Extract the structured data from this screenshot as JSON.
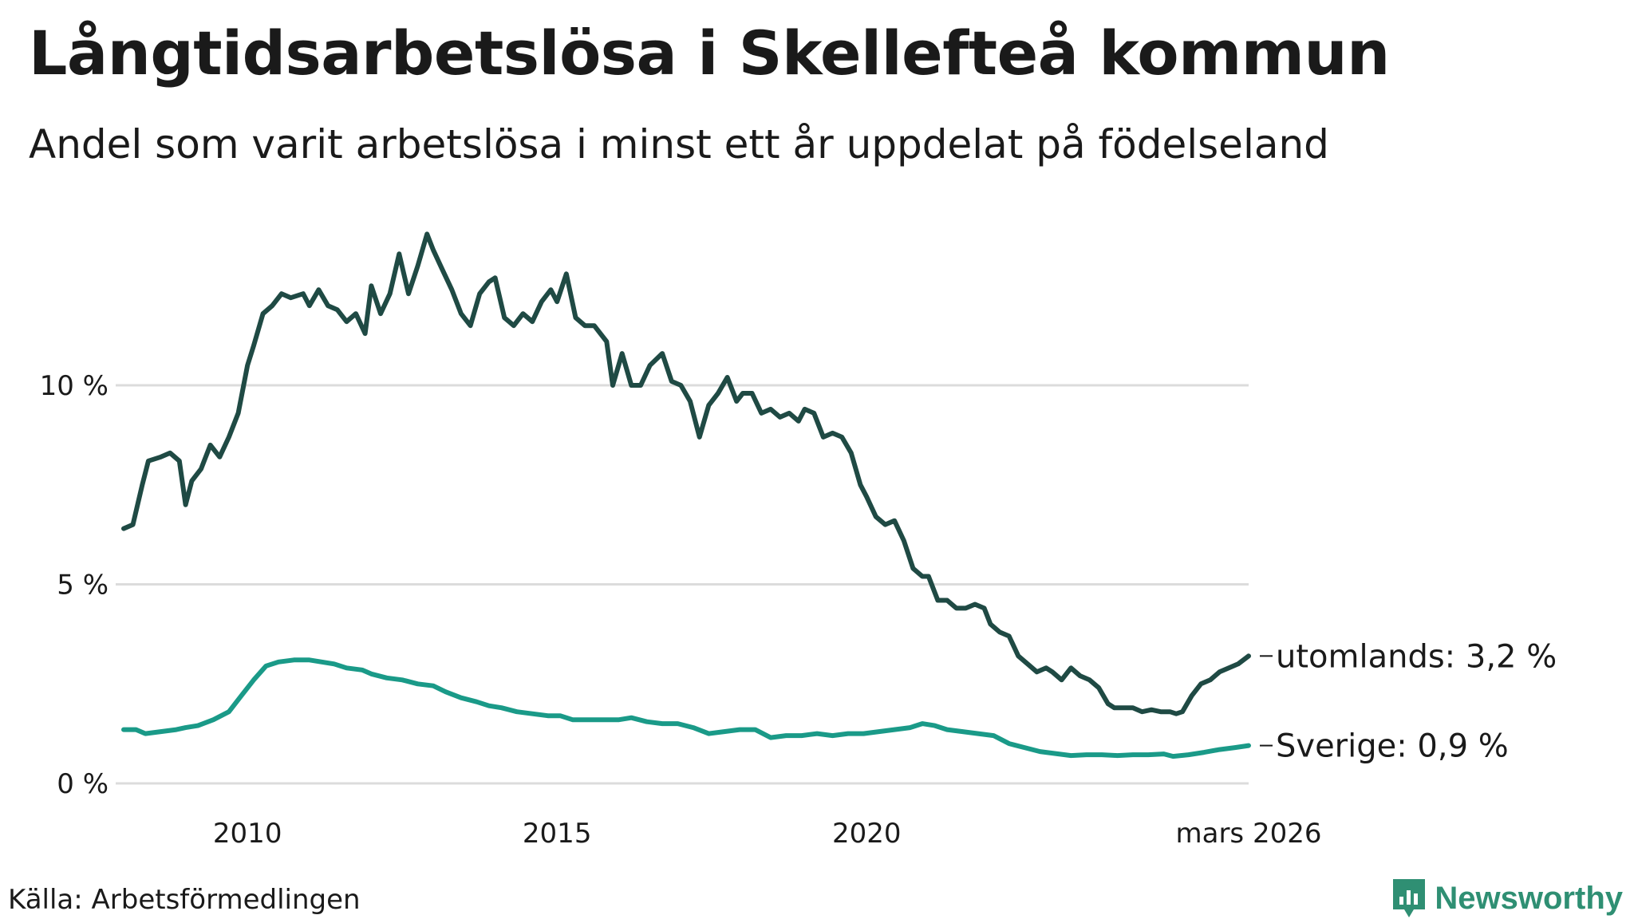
{
  "header": {
    "title": "Långtidsarbetslösa i Skellefteå kommun",
    "subtitle": "Andel som varit arbetslösa i minst ett år uppdelat på födelseland"
  },
  "footer": {
    "source": "Källa: Arbetsförmedlingen",
    "brand": "Newsworthy"
  },
  "colors": {
    "utomlands": "#1f4a44",
    "sverige": "#1a9a88",
    "grid": "#dcdcdc",
    "brand": "#2f8f73"
  },
  "chart_data": {
    "type": "line",
    "title": "Långtidsarbetslösa i Skellefteå kommun",
    "subtitle": "Andel som varit arbetslösa i minst ett år uppdelat på födelseland",
    "xlabel": "",
    "ylabel": "",
    "x_range": [
      2008.0,
      2026.17
    ],
    "ylim": [
      0,
      14
    ],
    "y_ticks": [
      0,
      5,
      10
    ],
    "y_tick_labels": [
      "0 %",
      "5 %",
      "10 %"
    ],
    "x_ticks": [
      2010,
      2015,
      2020,
      2026.17
    ],
    "x_tick_labels": [
      "2010",
      "2015",
      "2020",
      "mars 2026"
    ],
    "grid": true,
    "legend": "end-of-line labels",
    "series": [
      {
        "name": "utomlands",
        "label": "utomlands: 3,2 %",
        "color": "#1f4a44",
        "points": [
          [
            2008.0,
            6.4
          ],
          [
            2008.15,
            6.5
          ],
          [
            2008.3,
            7.5
          ],
          [
            2008.4,
            8.1
          ],
          [
            2008.6,
            8.2
          ],
          [
            2008.75,
            8.3
          ],
          [
            2008.9,
            8.1
          ],
          [
            2009.0,
            7.0
          ],
          [
            2009.1,
            7.6
          ],
          [
            2009.25,
            7.9
          ],
          [
            2009.4,
            8.5
          ],
          [
            2009.55,
            8.2
          ],
          [
            2009.7,
            8.7
          ],
          [
            2009.85,
            9.3
          ],
          [
            2010.0,
            10.5
          ],
          [
            2010.1,
            11.0
          ],
          [
            2010.25,
            11.8
          ],
          [
            2010.4,
            12.0
          ],
          [
            2010.55,
            12.3
          ],
          [
            2010.7,
            12.2
          ],
          [
            2010.9,
            12.3
          ],
          [
            2011.0,
            12.0
          ],
          [
            2011.15,
            12.4
          ],
          [
            2011.3,
            12.0
          ],
          [
            2011.45,
            11.9
          ],
          [
            2011.6,
            11.6
          ],
          [
            2011.75,
            11.8
          ],
          [
            2011.9,
            11.3
          ],
          [
            2012.0,
            12.5
          ],
          [
            2012.15,
            11.8
          ],
          [
            2012.3,
            12.3
          ],
          [
            2012.45,
            13.3
          ],
          [
            2012.6,
            12.3
          ],
          [
            2012.75,
            13.0
          ],
          [
            2012.9,
            13.8
          ],
          [
            2013.0,
            13.4
          ],
          [
            2013.15,
            12.9
          ],
          [
            2013.3,
            12.4
          ],
          [
            2013.45,
            11.8
          ],
          [
            2013.6,
            11.5
          ],
          [
            2013.75,
            12.3
          ],
          [
            2013.9,
            12.6
          ],
          [
            2014.0,
            12.7
          ],
          [
            2014.15,
            11.7
          ],
          [
            2014.3,
            11.5
          ],
          [
            2014.45,
            11.8
          ],
          [
            2014.6,
            11.6
          ],
          [
            2014.75,
            12.1
          ],
          [
            2014.9,
            12.4
          ],
          [
            2015.0,
            12.1
          ],
          [
            2015.15,
            12.8
          ],
          [
            2015.3,
            11.7
          ],
          [
            2015.45,
            11.5
          ],
          [
            2015.6,
            11.5
          ],
          [
            2015.8,
            11.1
          ],
          [
            2015.9,
            10.0
          ],
          [
            2016.05,
            10.8
          ],
          [
            2016.2,
            10.0
          ],
          [
            2016.35,
            10.0
          ],
          [
            2016.5,
            10.5
          ],
          [
            2016.7,
            10.8
          ],
          [
            2016.85,
            10.1
          ],
          [
            2017.0,
            10.0
          ],
          [
            2017.15,
            9.6
          ],
          [
            2017.3,
            8.7
          ],
          [
            2017.45,
            9.5
          ],
          [
            2017.6,
            9.8
          ],
          [
            2017.75,
            10.2
          ],
          [
            2017.9,
            9.6
          ],
          [
            2018.0,
            9.8
          ],
          [
            2018.15,
            9.8
          ],
          [
            2018.3,
            9.3
          ],
          [
            2018.45,
            9.4
          ],
          [
            2018.6,
            9.2
          ],
          [
            2018.75,
            9.3
          ],
          [
            2018.9,
            9.1
          ],
          [
            2019.0,
            9.4
          ],
          [
            2019.15,
            9.3
          ],
          [
            2019.3,
            8.7
          ],
          [
            2019.45,
            8.8
          ],
          [
            2019.6,
            8.7
          ],
          [
            2019.75,
            8.3
          ],
          [
            2019.9,
            7.5
          ],
          [
            2020.0,
            7.2
          ],
          [
            2020.15,
            6.7
          ],
          [
            2020.3,
            6.5
          ],
          [
            2020.45,
            6.6
          ],
          [
            2020.6,
            6.1
          ],
          [
            2020.75,
            5.4
          ],
          [
            2020.9,
            5.2
          ],
          [
            2021.0,
            5.2
          ],
          [
            2021.15,
            4.6
          ],
          [
            2021.3,
            4.6
          ],
          [
            2021.45,
            4.4
          ],
          [
            2021.6,
            4.4
          ],
          [
            2021.75,
            4.5
          ],
          [
            2021.9,
            4.4
          ],
          [
            2022.0,
            4.0
          ],
          [
            2022.15,
            3.8
          ],
          [
            2022.3,
            3.7
          ],
          [
            2022.45,
            3.2
          ],
          [
            2022.6,
            3.0
          ],
          [
            2022.75,
            2.8
          ],
          [
            2022.9,
            2.9
          ],
          [
            2023.0,
            2.8
          ],
          [
            2023.15,
            2.6
          ],
          [
            2023.3,
            2.9
          ],
          [
            2023.45,
            2.7
          ],
          [
            2023.6,
            2.6
          ],
          [
            2023.75,
            2.4
          ],
          [
            2023.9,
            2.0
          ],
          [
            2024.0,
            1.9
          ],
          [
            2024.15,
            1.9
          ],
          [
            2024.3,
            1.9
          ],
          [
            2024.45,
            1.8
          ],
          [
            2024.6,
            1.85
          ],
          [
            2024.75,
            1.8
          ],
          [
            2024.9,
            1.8
          ],
          [
            2025.0,
            1.75
          ],
          [
            2025.1,
            1.8
          ],
          [
            2025.25,
            2.2
          ],
          [
            2025.4,
            2.5
          ],
          [
            2025.55,
            2.6
          ],
          [
            2025.7,
            2.8
          ],
          [
            2025.85,
            2.9
          ],
          [
            2026.0,
            3.0
          ],
          [
            2026.17,
            3.2
          ]
        ]
      },
      {
        "name": "Sverige",
        "label": "Sverige: 0,9 %",
        "color": "#1a9a88",
        "points": [
          [
            2008.0,
            1.35
          ],
          [
            2008.2,
            1.35
          ],
          [
            2008.35,
            1.25
          ],
          [
            2008.6,
            1.3
          ],
          [
            2008.85,
            1.35
          ],
          [
            2009.0,
            1.4
          ],
          [
            2009.2,
            1.45
          ],
          [
            2009.45,
            1.6
          ],
          [
            2009.7,
            1.8
          ],
          [
            2009.9,
            2.2
          ],
          [
            2010.1,
            2.6
          ],
          [
            2010.3,
            2.95
          ],
          [
            2010.5,
            3.05
          ],
          [
            2010.75,
            3.1
          ],
          [
            2011.0,
            3.1
          ],
          [
            2011.2,
            3.05
          ],
          [
            2011.4,
            3.0
          ],
          [
            2011.6,
            2.9
          ],
          [
            2011.85,
            2.85
          ],
          [
            2012.0,
            2.75
          ],
          [
            2012.25,
            2.65
          ],
          [
            2012.5,
            2.6
          ],
          [
            2012.75,
            2.5
          ],
          [
            2013.0,
            2.45
          ],
          [
            2013.2,
            2.3
          ],
          [
            2013.45,
            2.15
          ],
          [
            2013.7,
            2.05
          ],
          [
            2013.9,
            1.95
          ],
          [
            2014.1,
            1.9
          ],
          [
            2014.35,
            1.8
          ],
          [
            2014.6,
            1.75
          ],
          [
            2014.85,
            1.7
          ],
          [
            2015.05,
            1.7
          ],
          [
            2015.25,
            1.6
          ],
          [
            2015.5,
            1.6
          ],
          [
            2015.75,
            1.6
          ],
          [
            2016.0,
            1.6
          ],
          [
            2016.2,
            1.65
          ],
          [
            2016.45,
            1.55
          ],
          [
            2016.7,
            1.5
          ],
          [
            2016.95,
            1.5
          ],
          [
            2017.2,
            1.4
          ],
          [
            2017.45,
            1.25
          ],
          [
            2017.7,
            1.3
          ],
          [
            2017.95,
            1.35
          ],
          [
            2018.2,
            1.35
          ],
          [
            2018.45,
            1.15
          ],
          [
            2018.7,
            1.2
          ],
          [
            2018.95,
            1.2
          ],
          [
            2019.2,
            1.25
          ],
          [
            2019.45,
            1.2
          ],
          [
            2019.7,
            1.25
          ],
          [
            2019.95,
            1.25
          ],
          [
            2020.2,
            1.3
          ],
          [
            2020.45,
            1.35
          ],
          [
            2020.7,
            1.4
          ],
          [
            2020.9,
            1.5
          ],
          [
            2021.1,
            1.45
          ],
          [
            2021.3,
            1.35
          ],
          [
            2021.55,
            1.3
          ],
          [
            2021.8,
            1.25
          ],
          [
            2022.05,
            1.2
          ],
          [
            2022.3,
            1.0
          ],
          [
            2022.55,
            0.9
          ],
          [
            2022.8,
            0.8
          ],
          [
            2023.05,
            0.75
          ],
          [
            2023.3,
            0.7
          ],
          [
            2023.55,
            0.72
          ],
          [
            2023.8,
            0.72
          ],
          [
            2024.05,
            0.7
          ],
          [
            2024.3,
            0.72
          ],
          [
            2024.55,
            0.72
          ],
          [
            2024.8,
            0.74
          ],
          [
            2024.95,
            0.68
          ],
          [
            2025.2,
            0.72
          ],
          [
            2025.45,
            0.78
          ],
          [
            2025.7,
            0.85
          ],
          [
            2025.95,
            0.9
          ],
          [
            2026.17,
            0.95
          ]
        ]
      }
    ]
  }
}
